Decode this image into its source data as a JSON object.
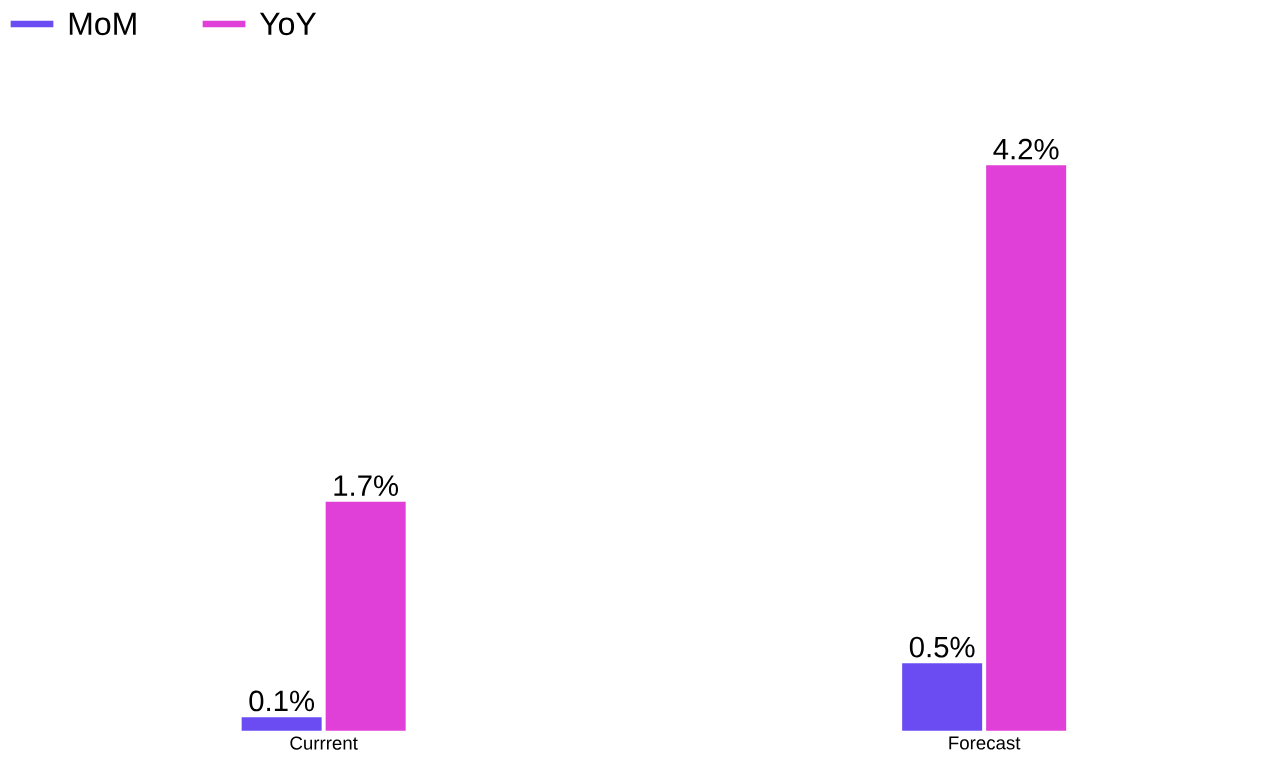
{
  "chart_data": {
    "type": "bar",
    "categories": [
      "Currrent",
      "Forecast"
    ],
    "series": [
      {
        "name": "MoM",
        "color": "#6a4cf2",
        "values": [
          0.1,
          0.5
        ],
        "value_labels": [
          "0.1%",
          "0.5%"
        ]
      },
      {
        "name": "YoY",
        "color": "#e03fd8",
        "values": [
          1.7,
          4.2
        ],
        "value_labels": [
          "1.7%",
          "4.2%"
        ]
      }
    ],
    "legend": "top left"
  }
}
